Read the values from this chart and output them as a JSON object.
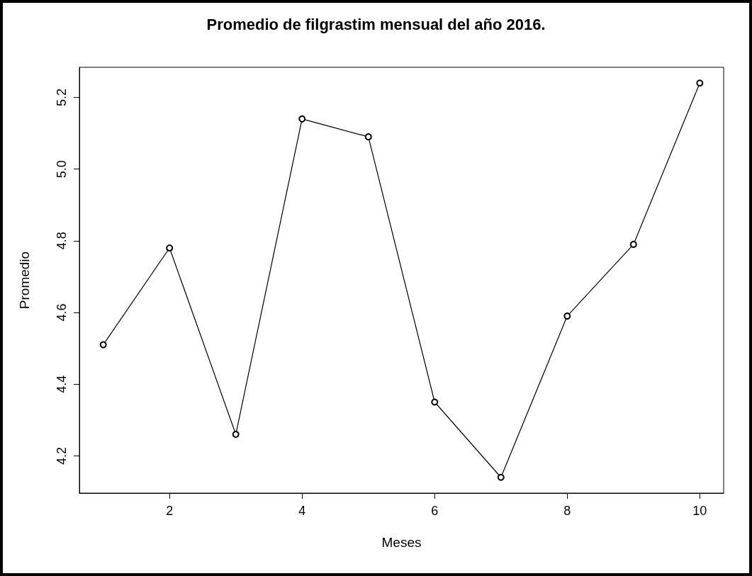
{
  "chart_data": {
    "type": "line",
    "title": "Promedio de filgrastim mensual del año 2016.",
    "xlabel": "Meses",
    "ylabel": "Promedio",
    "x": [
      1,
      2,
      3,
      4,
      5,
      6,
      7,
      8,
      9,
      10
    ],
    "series": [
      {
        "color": "#000000",
        "values": [
          4.51,
          4.78,
          4.26,
          5.14,
          5.09,
          4.35,
          4.14,
          4.59,
          4.79,
          5.24
        ]
      }
    ],
    "xlim": [
      0.64,
      10.36
    ],
    "xticks": [
      2,
      4,
      6,
      8,
      10
    ],
    "ylim": [
      4.096,
      5.284
    ],
    "yticks": [
      4.2,
      4.4,
      4.6,
      4.8,
      {
        "value": 5,
        "label": "5.0"
      },
      5.2
    ],
    "grid": false,
    "marker": "circle",
    "line_style": "solid"
  }
}
